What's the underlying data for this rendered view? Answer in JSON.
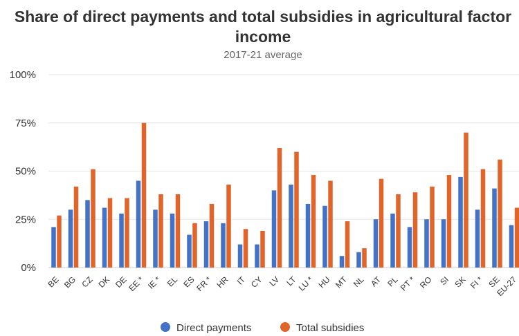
{
  "chart_data": {
    "type": "bar",
    "title": "Share of direct payments and total subsidies in agricultural factor income",
    "subtitle": "2017-21 average",
    "ylim": [
      0,
      100
    ],
    "yticks": [
      "0%",
      "25%",
      "50%",
      "75%",
      "100%"
    ],
    "yticks_values": [
      0,
      25,
      50,
      75,
      100
    ],
    "grid": true,
    "legend_position": "bottom",
    "categories": [
      "BE",
      "BG",
      "CZ",
      "DK",
      "DE",
      "EE *",
      "IE *",
      "EL",
      "ES",
      "FR *",
      "HR",
      "IT",
      "CY",
      "LV",
      "LT",
      "LU *",
      "HU",
      "MT",
      "NL",
      "AT",
      "PL",
      "PT *",
      "RO",
      "SI",
      "SK",
      "FI *",
      "SE",
      "EU-27"
    ],
    "series": [
      {
        "name": "Direct payments",
        "color": "#4472c4",
        "values": [
          21,
          30,
          35,
          31,
          28,
          45,
          30,
          28,
          17,
          24,
          23,
          12,
          12,
          40,
          43,
          33,
          32,
          6,
          8,
          25,
          28,
          21,
          25,
          25,
          47,
          30,
          41,
          22
        ]
      },
      {
        "name": "Total subsidies",
        "color": "#e0652b",
        "values": [
          27,
          42,
          51,
          36,
          36,
          75,
          38,
          38,
          23,
          33,
          43,
          20,
          19,
          62,
          60,
          48,
          45,
          24,
          10,
          46,
          38,
          39,
          42,
          48,
          70,
          51,
          56,
          31
        ]
      }
    ]
  }
}
